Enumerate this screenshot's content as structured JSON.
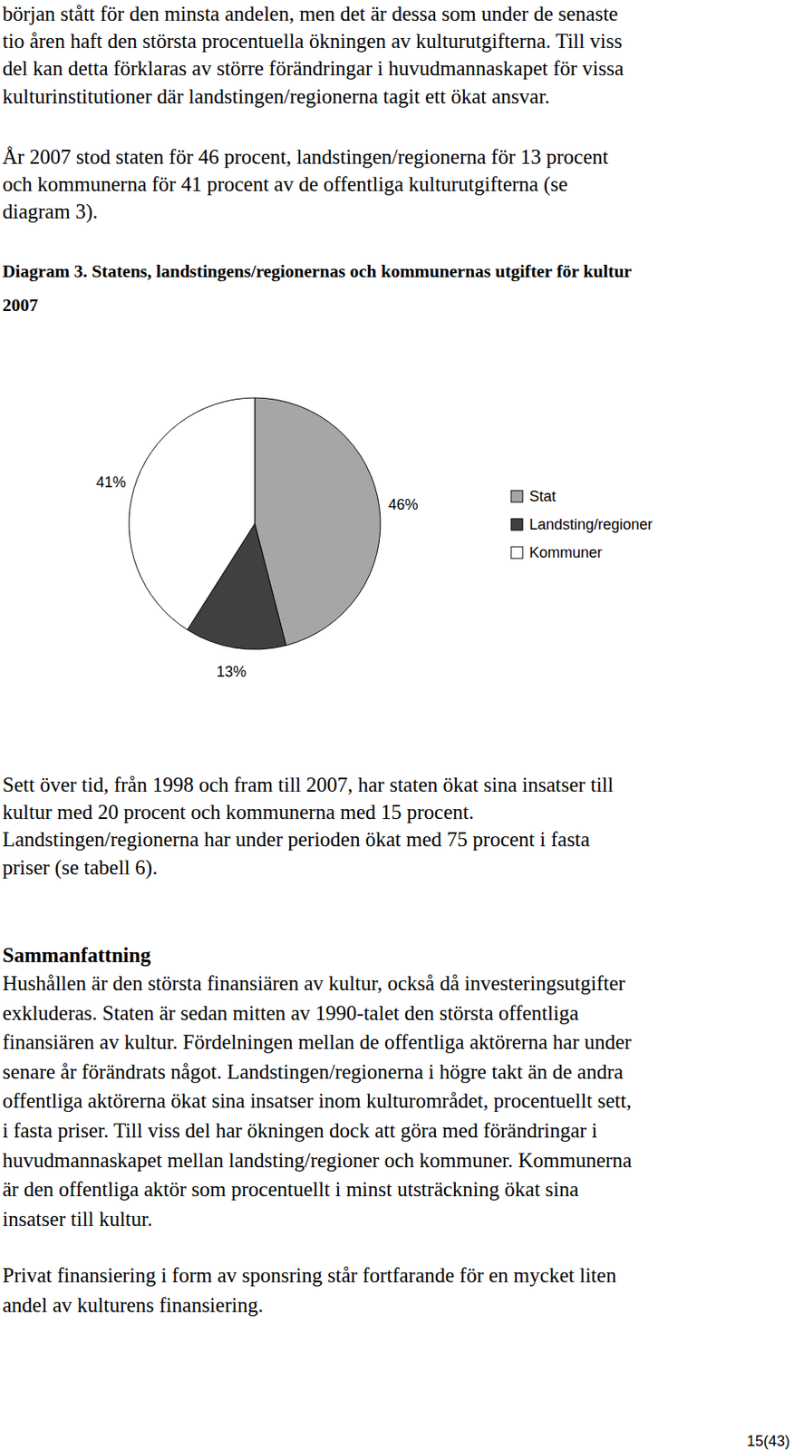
{
  "text_before": [
    [
      "början stått för den minsta andelen, men det är dessa som under de senaste",
      "tio åren haft den största procentuella ökningen av kulturutgifterna. Till viss",
      "del kan detta förklaras av större förändringar i huvudmannaskapet för vissa",
      "kulturinstitutioner där landstingen/regionerna tagit ett ökat ansvar."
    ],
    [
      "År 2007 stod staten för 46 procent, landstingen/regionerna för 13 procent",
      "och kommunerna för 41 procent av de offentliga kulturutgifterna (se",
      "diagram 3)."
    ]
  ],
  "chart_data": {
    "type": "pie",
    "title": [
      "Diagram 3. Statens, landstingens/regionernas och kommunernas utgifter för kultur",
      "2007"
    ],
    "categories": [
      "Stat",
      "Landsting/regioner",
      "Kommuner"
    ],
    "values": [
      46,
      13,
      41
    ],
    "value_labels": [
      "46%",
      "13%",
      "41%"
    ],
    "colors": [
      "#a6a6a6",
      "#404040",
      "#ffffff"
    ],
    "data_labels": true,
    "legend": "right"
  },
  "text_after": [
    [
      "Sett över tid, från 1998 och fram till 2007, har staten ökat sina insatser till",
      "kultur med 20 procent och kommunerna med 15 procent.",
      "Landstingen/regionerna har under perioden ökat med 75 procent i fasta",
      "priser (se tabell 6)."
    ]
  ],
  "summary": {
    "heading": "Sammanfattning",
    "paragraphs": [
      [
        "Hushållen är den största finansiären av kultur, också då investeringsutgifter",
        "exkluderas. Staten är sedan mitten av 1990-talet den största offentliga",
        "finansiären av kultur. Fördelningen mellan de offentliga aktörerna har under",
        "senare år förändrats något. Landstingen/regionerna i högre takt än de andra",
        "offentliga aktörerna ökat sina insatser inom kulturområdet, procentuellt sett,",
        "i fasta priser. Till viss del har ökningen dock att göra med förändringar i",
        "huvudmannaskapet mellan landsting/regioner och kommuner. Kommunerna",
        "är den offentliga aktör som procentuellt i minst utsträckning ökat sina",
        "insatser till kultur."
      ],
      [
        "Privat finansiering i form av sponsring står fortfarande för en mycket liten",
        "andel av kulturens finansiering."
      ]
    ]
  },
  "page_number": "15(43)"
}
